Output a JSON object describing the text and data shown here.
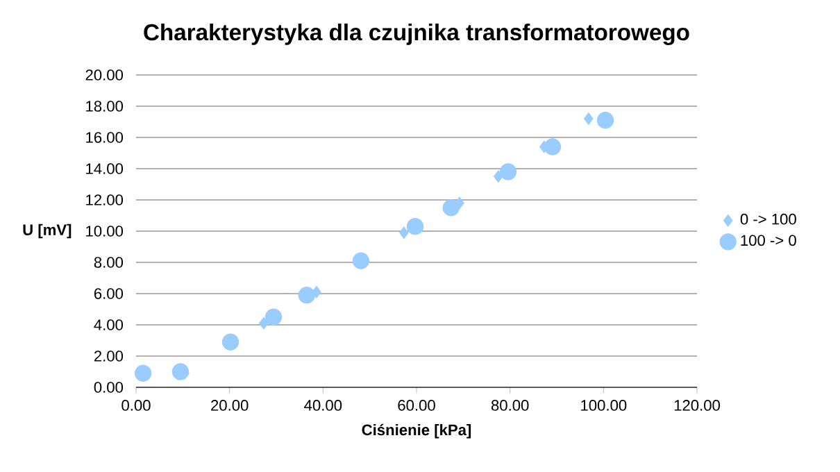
{
  "chart_data": {
    "type": "scatter",
    "title": "Charakterystyka dla czujnika transformatorowego",
    "xlabel": "Ciśnienie [kPa]",
    "ylabel": "U [mV]",
    "xlim": [
      0,
      120
    ],
    "ylim": [
      0,
      20
    ],
    "xticks": [
      {
        "value": 0,
        "label": "0.00"
      },
      {
        "value": 20,
        "label": "20.00"
      },
      {
        "value": 40,
        "label": "40.00"
      },
      {
        "value": 60,
        "label": "60.00"
      },
      {
        "value": 80,
        "label": "80.00"
      },
      {
        "value": 100,
        "label": "100.00"
      },
      {
        "value": 120,
        "label": "120.00"
      }
    ],
    "yticks": [
      {
        "value": 0,
        "label": "0.00"
      },
      {
        "value": 2,
        "label": "2.00"
      },
      {
        "value": 4,
        "label": "4.00"
      },
      {
        "value": 6,
        "label": "6.00"
      },
      {
        "value": 8,
        "label": "8.00"
      },
      {
        "value": 10,
        "label": "10.00"
      },
      {
        "value": 12,
        "label": "12.00"
      },
      {
        "value": 14,
        "label": "14.00"
      },
      {
        "value": 16,
        "label": "16.00"
      },
      {
        "value": 18,
        "label": "18.00"
      },
      {
        "value": 20,
        "label": "20.00"
      }
    ],
    "grid": "y",
    "legend": "right",
    "series": [
      {
        "name": "0 -> 100",
        "color": "#99ccff",
        "marker": "diamond",
        "x": [
          10.4,
          27.3,
          38.6,
          57.3,
          69.2,
          77.5,
          87.3,
          96.8
        ],
        "values": [
          0.9,
          4.1,
          6.1,
          9.9,
          11.8,
          13.5,
          15.4,
          17.2
        ]
      },
      {
        "name": "100 -> 0",
        "color": "#99ccff",
        "marker": "circle",
        "x": [
          100.4,
          89.1,
          79.6,
          67.4,
          59.7,
          48.1,
          36.5,
          29.4,
          20.2,
          9.5,
          1.5
        ],
        "values": [
          17.1,
          15.4,
          13.8,
          11.5,
          10.3,
          8.1,
          5.9,
          4.5,
          2.9,
          1.0,
          0.9
        ]
      }
    ]
  }
}
